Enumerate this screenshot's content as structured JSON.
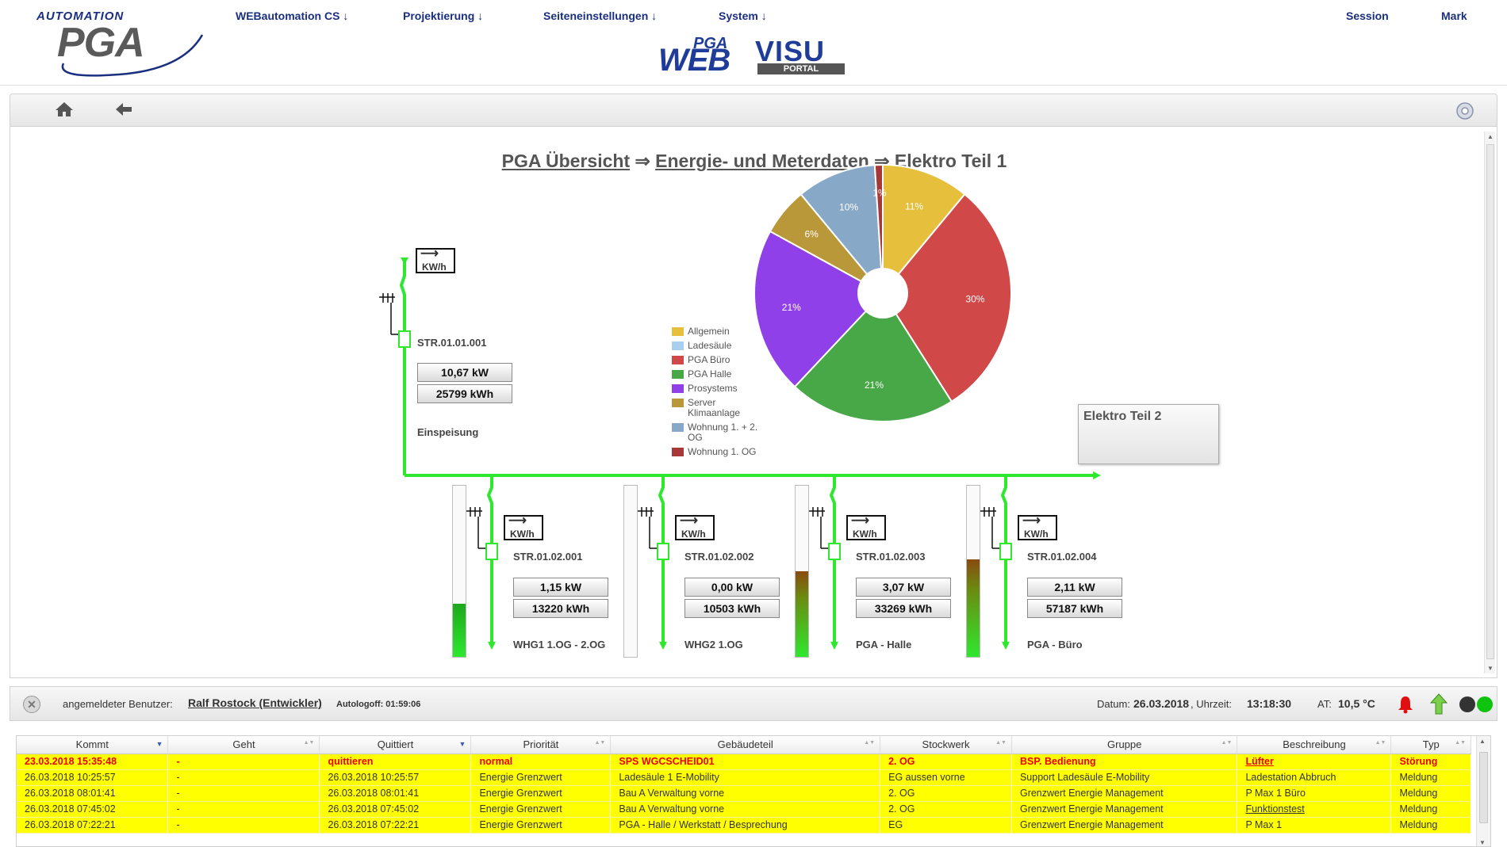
{
  "header": {
    "logo_top": "AUTOMATION",
    "logo_main": "PGA",
    "menu": [
      "WEBautomation CS ↓",
      "Projektierung ↓",
      "Seiteneinstellungen ↓",
      "System ↓"
    ],
    "session": "Session",
    "user": "Mark",
    "brand_pga": "PGA",
    "brand_web": "WEB",
    "brand_visu": "VISU",
    "brand_portal": "PORTAL"
  },
  "toolbar": {
    "home_icon": "home-icon",
    "back_icon": "back-arrow-icon",
    "settings_icon": "gear-icon"
  },
  "breadcrumb": {
    "level1": "PGA Übersicht",
    "sep": " ⇒ ",
    "level2": "Energie- und Meterdaten",
    "current": "Elektro Teil 1"
  },
  "main_meter": {
    "id": "STR.01.01.001",
    "power": "10,67 kW",
    "energy": "25799 kWh",
    "label": "Einspeisung"
  },
  "sub_meters": [
    {
      "id": "STR.01.02.001",
      "power": "1,15 kW",
      "energy": "13220 kWh",
      "label": "WHG1 1.OG - 2.OG",
      "level": 0.31
    },
    {
      "id": "STR.01.02.002",
      "power": "0,00 kW",
      "energy": "10503 kWh",
      "label": "WHG2 1.OG",
      "level": 0.0
    },
    {
      "id": "STR.01.02.003",
      "power": "3,07 kW",
      "energy": "33269 kWh",
      "label": "PGA - Halle",
      "level": 0.5
    },
    {
      "id": "STR.01.02.004",
      "power": "2,11 kW",
      "energy": "57187 kWh",
      "label": "PGA - Büro",
      "level": 0.57
    }
  ],
  "meter_unit_icon": "KW/h",
  "elektro2_button": "Elektro Teil 2",
  "chart_data": {
    "type": "pie",
    "labels": [
      "Allgemein",
      "Ladesäule",
      "PGA Büro",
      "PGA Halle",
      "Prosystems",
      "Server Klimaanlage",
      "Wohnung 1. + 2. OG",
      "Wohnung 1. OG"
    ],
    "values": [
      11,
      0,
      30,
      21,
      21,
      6,
      10,
      1
    ],
    "value_labels": [
      "11%",
      "",
      "30%",
      "21%",
      "21%",
      "6%",
      "10%",
      "1%"
    ],
    "colors": [
      "#e6c03c",
      "#a8cff0",
      "#d04848",
      "#48a848",
      "#9040e8",
      "#b89838",
      "#88a8c8",
      "#a83838"
    ],
    "legend_position": "left"
  },
  "status": {
    "user_label": "angemeldeter Benutzer:",
    "user_name": "Ralf Rostock (Entwickler)",
    "autologoff": "Autologoff: 01:59:06",
    "date_label": "Datum:",
    "date": "26.03.2018",
    "time_label": ", Uhrzeit:",
    "time": "13:18:30",
    "at_label": "AT:",
    "at_value": "10,5 °C"
  },
  "alarm_table": {
    "columns": [
      "Kommt",
      "Geht",
      "Quittiert",
      "Priorität",
      "Gebäudeteil",
      "Stockwerk",
      "Gruppe",
      "Beschreibung",
      "Typ"
    ],
    "rows": [
      [
        "23.03.2018 15:35:48",
        "-",
        "quittieren",
        "normal",
        "SPS WGCSCHEID01",
        "2. OG",
        "BSP. Bedienung",
        "Lüfter",
        "Störung"
      ],
      [
        "26.03.2018 10:25:57",
        "-",
        "26.03.2018 10:25:57",
        "Energie Grenzwert",
        "Ladesäule 1 E-Mobility",
        "EG aussen vorne",
        "Support Ladesäule E-Mobility",
        "Ladestation Abbruch",
        "Meldung"
      ],
      [
        "26.03.2018 08:01:41",
        "-",
        "26.03.2018 08:01:41",
        "Energie Grenzwert",
        "Bau A Verwaltung vorne",
        "2. OG",
        "Grenzwert Energie Management",
        "P Max 1 Büro",
        "Meldung"
      ],
      [
        "26.03.2018 07:45:02",
        "-",
        "26.03.2018 07:45:02",
        "Energie Grenzwert",
        "Bau A Verwaltung vorne",
        "2. OG",
        "Grenzwert Energie Management",
        "Funktionstest",
        "Meldung"
      ],
      [
        "26.03.2018 07:22:21",
        "-",
        "26.03.2018 07:22:21",
        "Energie Grenzwert",
        "PGA - Halle / Werkstatt / Besprechung",
        "EG",
        "Grenzwert Energie Management",
        "P Max 1",
        "Meldung"
      ]
    ]
  }
}
